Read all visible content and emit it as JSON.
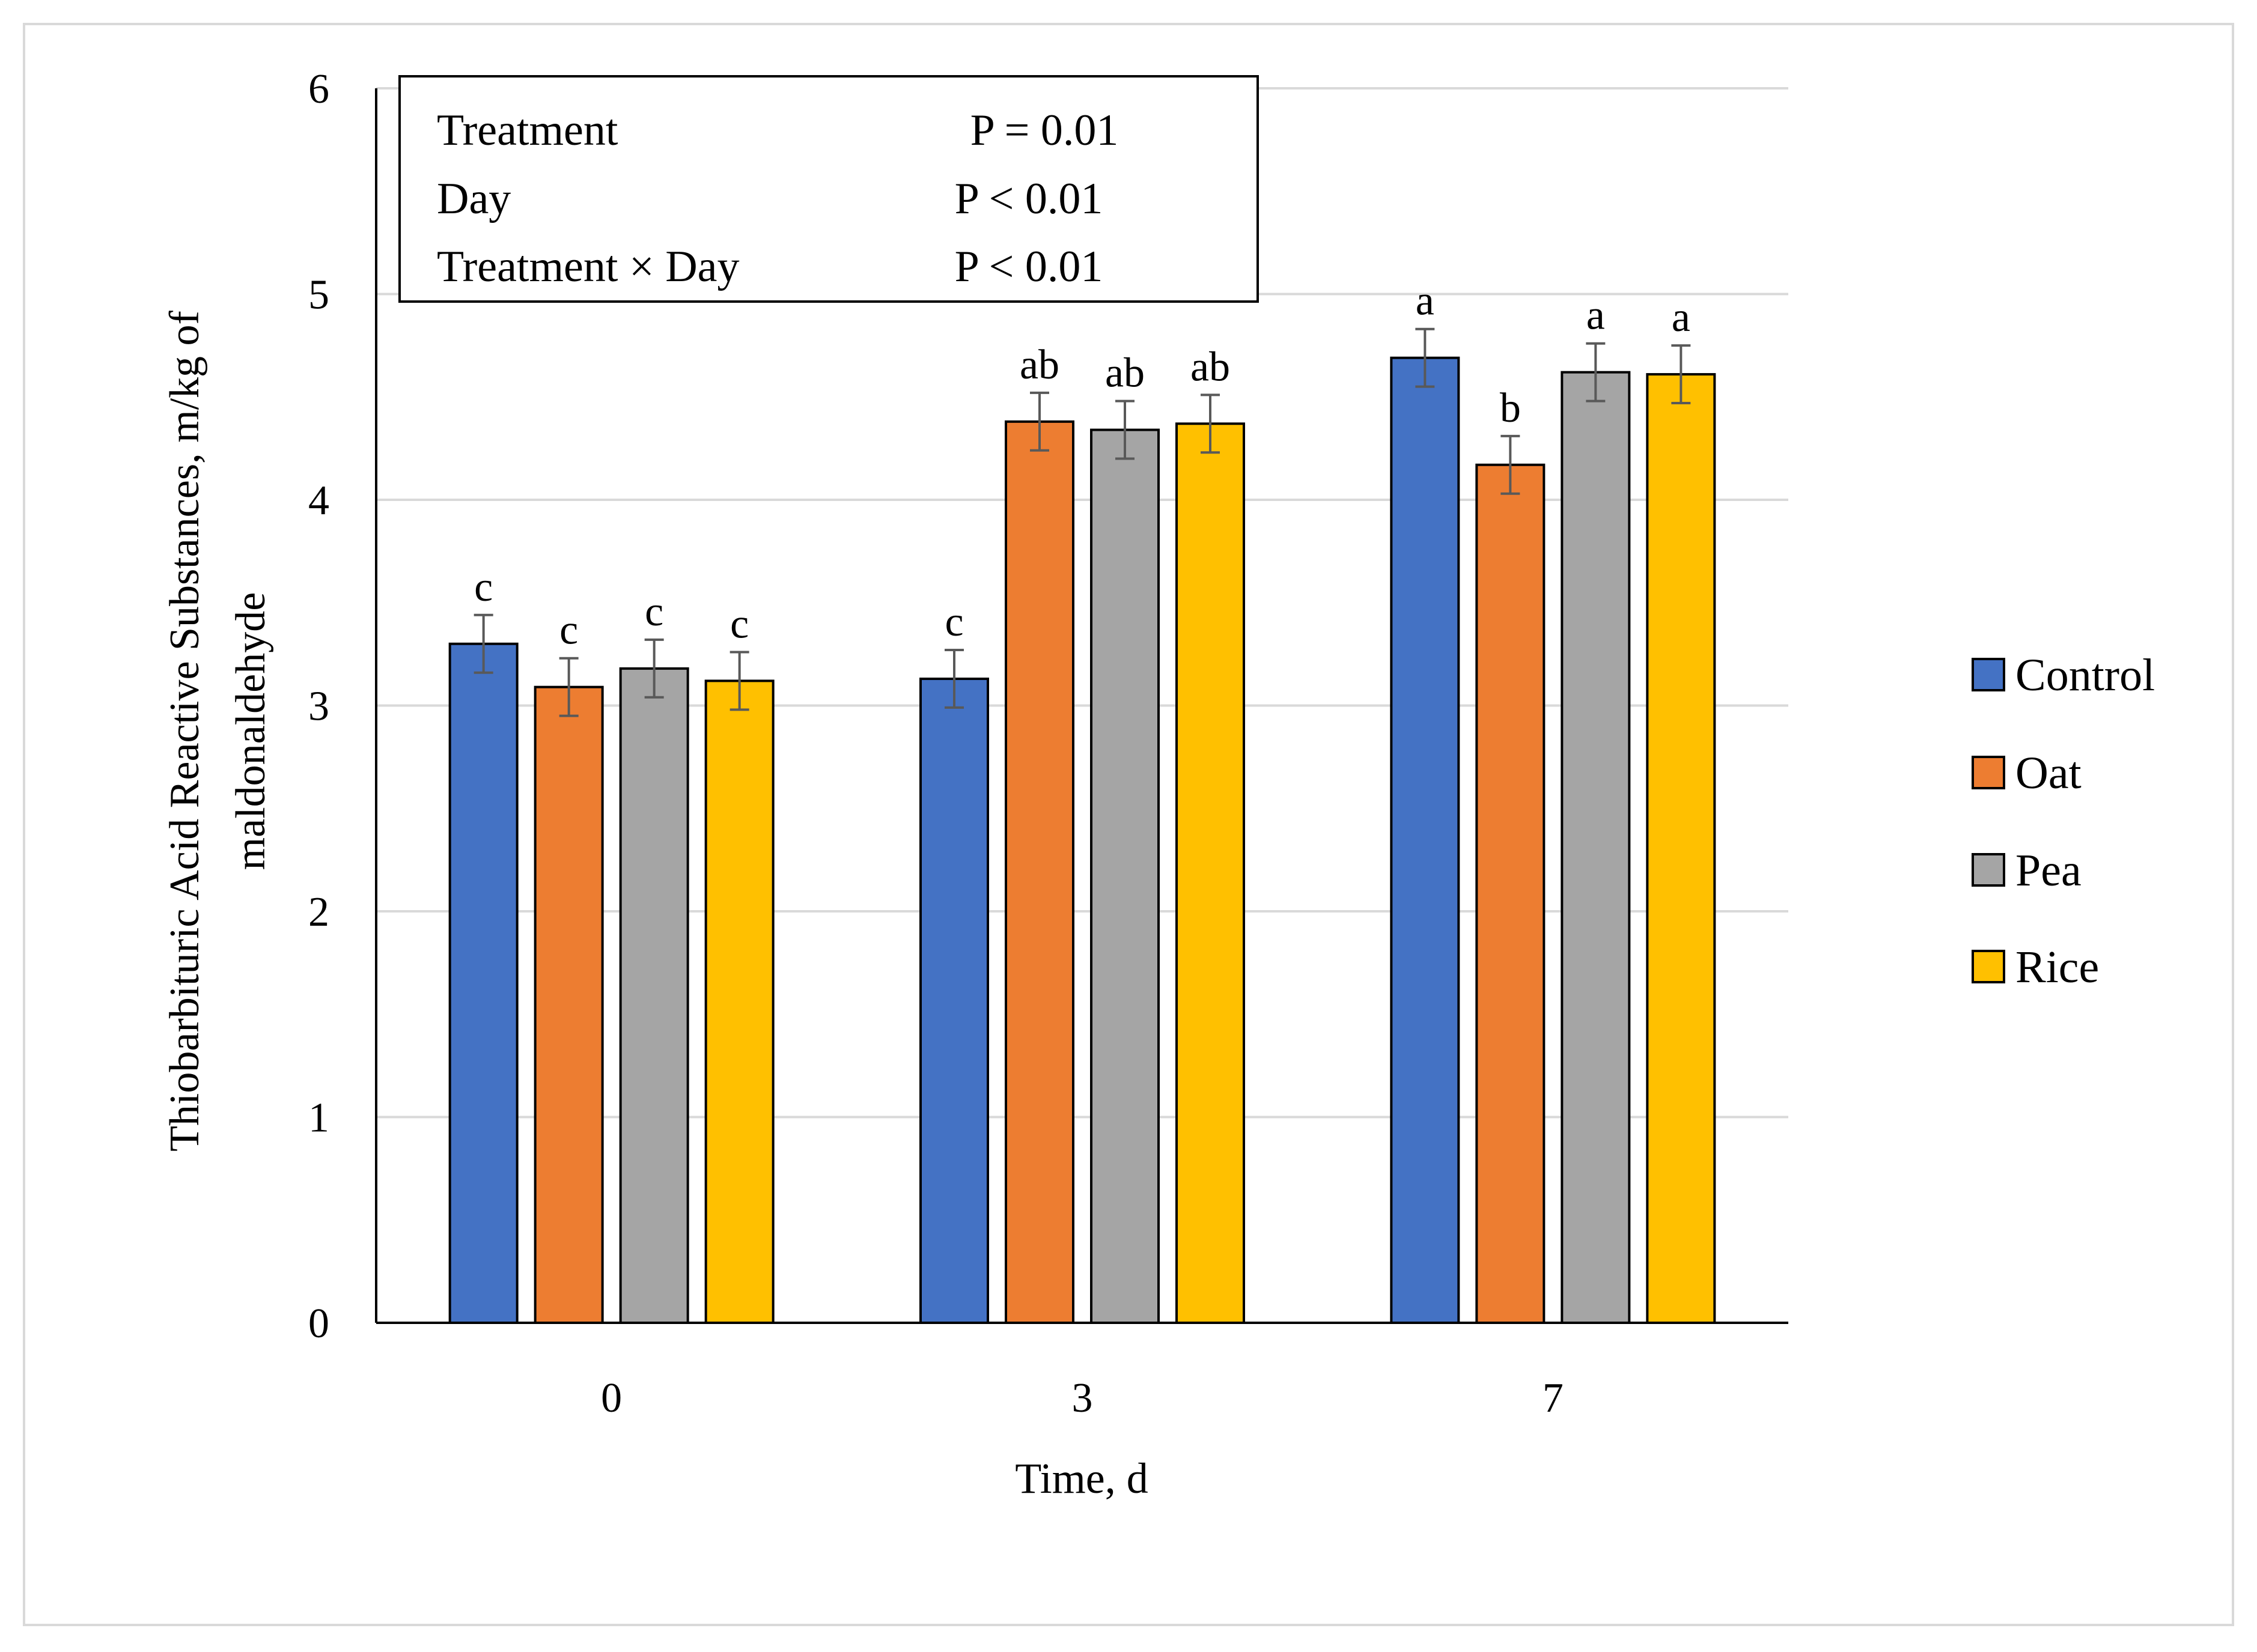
{
  "chart_data": {
    "type": "bar",
    "title": "",
    "xlabel": "Time, d",
    "ylabel_lines": [
      "Thiobarbituric Acid Reactive Substances, m/kg of",
      "maldonaldehyde"
    ],
    "categories": [
      "0",
      "3",
      "7"
    ],
    "ylim": [
      0,
      6
    ],
    "yticks": [
      0,
      1,
      2,
      3,
      4,
      5,
      6
    ],
    "grid": true,
    "legend_position": "right",
    "series": [
      {
        "name": "Control",
        "color": "#4472C4",
        "values": [
          3.3,
          3.13,
          4.69
        ],
        "errors": [
          0.14,
          0.14,
          0.14
        ],
        "letters": [
          "c",
          "c",
          "a"
        ]
      },
      {
        "name": "Oat",
        "color": "#ED7D31",
        "values": [
          3.09,
          4.38,
          4.17
        ],
        "errors": [
          0.14,
          0.14,
          0.14
        ],
        "letters": [
          "c",
          "ab",
          "b"
        ]
      },
      {
        "name": "Pea",
        "color": "#A5A5A5",
        "values": [
          3.18,
          4.34,
          4.62
        ],
        "errors": [
          0.14,
          0.14,
          0.14
        ],
        "letters": [
          "c",
          "ab",
          "a"
        ]
      },
      {
        "name": "Rice",
        "color": "#FFC000",
        "values": [
          3.12,
          4.37,
          4.61
        ],
        "errors": [
          0.14,
          0.14,
          0.14
        ],
        "letters": [
          "c",
          "ab",
          "a"
        ]
      }
    ],
    "stats_box": [
      {
        "effect": "Treatment",
        "p": "P = 0.01"
      },
      {
        "effect": "Day",
        "p": "P < 0.01"
      },
      {
        "effect": "Treatment × Day",
        "p": "P < 0.01"
      }
    ]
  }
}
